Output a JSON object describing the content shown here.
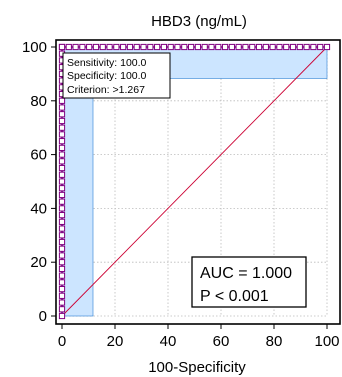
{
  "chart_data": {
    "type": "line",
    "title": "HBD3 (ng/mL)",
    "xlabel": "100-Specificity",
    "ylabel": "",
    "xlim": [
      0,
      100
    ],
    "ylim": [
      0,
      100
    ],
    "x_ticks": [
      "0",
      "20",
      "40",
      "60",
      "80",
      "100"
    ],
    "y_ticks": [
      "0",
      "20",
      "40",
      "60",
      "80",
      "100"
    ],
    "grid": true,
    "series": [
      {
        "x": [
          0,
          0,
          100
        ],
        "y": [
          0,
          100,
          100
        ]
      }
    ],
    "reference_line": {
      "x": [
        0,
        100
      ],
      "y": [
        0,
        100
      ]
    },
    "confidence_bands": {
      "vertical": {
        "x": [
          0,
          11.7
        ],
        "y": [
          0,
          100
        ]
      },
      "horizontal": {
        "x": [
          0,
          100
        ],
        "y": [
          88.3,
          100
        ]
      }
    },
    "criterion_box": {
      "lines": [
        "Sensitivity: 100.0",
        "Specificity: 100.0",
        "Criterion:  >1.267"
      ]
    },
    "stats_box": {
      "lines": [
        "AUC = 1.000",
        "P < 0.001"
      ]
    },
    "colors": {
      "curve": "#800080",
      "diagonal": "#cc0033",
      "band_fill": "#cce5ff",
      "band_edge": "#2a7fd4",
      "grid": "#bbbbbb"
    }
  }
}
